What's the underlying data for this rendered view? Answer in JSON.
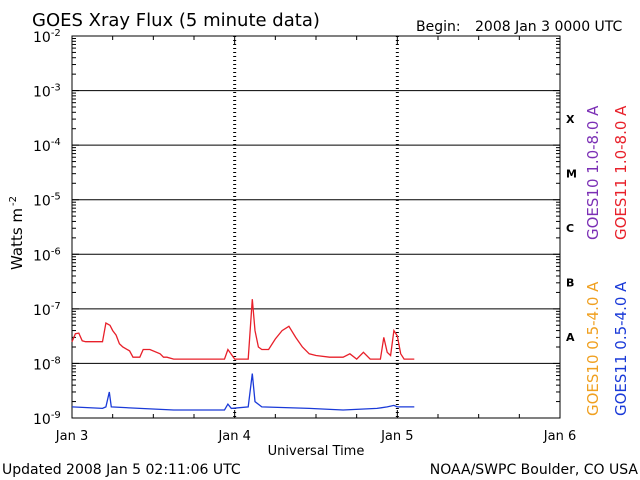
{
  "header": {
    "title": "GOES Xray Flux (5 minute data)",
    "begin_label": "Begin:",
    "begin_value": "2008 Jan 3 0000 UTC"
  },
  "footer": {
    "updated": "Updated 2008 Jan  5 02:11:06 UTC",
    "credit": "NOAA/SWPC Boulder, CO USA"
  },
  "chart_data": {
    "type": "line",
    "title": "GOES Xray Flux (5 minute data)",
    "xlabel": "Universal Time",
    "ylabel": "Watts m",
    "ylabel_exponent": "-2",
    "y_scale": "log",
    "ylim_exponents": [
      -9,
      -2
    ],
    "y_ticks": [
      {
        "mantissa": "10",
        "exp": "-2"
      },
      {
        "mantissa": "10",
        "exp": "-3"
      },
      {
        "mantissa": "10",
        "exp": "-4"
      },
      {
        "mantissa": "10",
        "exp": "-5"
      },
      {
        "mantissa": "10",
        "exp": "-6"
      },
      {
        "mantissa": "10",
        "exp": "-7"
      },
      {
        "mantissa": "10",
        "exp": "-8"
      },
      {
        "mantissa": "10",
        "exp": "-9"
      }
    ],
    "x_ticks": [
      "Jan 3",
      "Jan 4",
      "Jan 5",
      "Jan 6"
    ],
    "xlim_hours": [
      0,
      72
    ],
    "flare_classes": [
      {
        "label": "X",
        "decade": -4
      },
      {
        "label": "M",
        "decade": -5
      },
      {
        "label": "C",
        "decade": -6
      },
      {
        "label": "B",
        "decade": -7
      },
      {
        "label": "A",
        "decade": -8
      }
    ],
    "grid": "horizontal lines at each decade",
    "legend_placement": "right side, vertical",
    "legend": [
      {
        "name": "GOES10 1.0-8.0 A",
        "color": "#7b2fb5"
      },
      {
        "name": "GOES11 1.0-8.0 A",
        "color": "#e8202a"
      },
      {
        "name": "GOES10 0.5-4.0 A",
        "color": "#f0a020"
      },
      {
        "name": "GOES11 0.5-4.0 A",
        "color": "#1a3ad8"
      }
    ],
    "series": [
      {
        "name": "GOES11 1.0-8.0 A",
        "color": "#e8202a",
        "points": [
          [
            0,
            2.5e-08
          ],
          [
            0.5,
            3.5e-08
          ],
          [
            1.0,
            3.6e-08
          ],
          [
            1.5,
            2.6e-08
          ],
          [
            2.0,
            2.5e-08
          ],
          [
            4.5,
            2.5e-08
          ],
          [
            5.0,
            5.5e-08
          ],
          [
            5.6,
            5e-08
          ],
          [
            6.0,
            4e-08
          ],
          [
            6.5,
            3.3e-08
          ],
          [
            7.0,
            2.3e-08
          ],
          [
            7.5,
            2e-08
          ],
          [
            8.5,
            1.7e-08
          ],
          [
            9.0,
            1.3e-08
          ],
          [
            10.0,
            1.3e-08
          ],
          [
            10.5,
            1.8e-08
          ],
          [
            11.5,
            1.8e-08
          ],
          [
            13.0,
            1.5e-08
          ],
          [
            13.5,
            1.3e-08
          ],
          [
            14.0,
            1.3e-08
          ],
          [
            15.0,
            1.2e-08
          ],
          [
            20.0,
            1.2e-08
          ],
          [
            22.5,
            1.2e-08
          ],
          [
            23.0,
            1.8e-08
          ],
          [
            24.0,
            1.2e-08
          ],
          [
            26.0,
            1.2e-08
          ],
          [
            26.6,
            1.5e-07
          ],
          [
            27.0,
            4e-08
          ],
          [
            27.5,
            2e-08
          ],
          [
            28.0,
            1.8e-08
          ],
          [
            29.0,
            1.8e-08
          ],
          [
            30.0,
            2.8e-08
          ],
          [
            31.0,
            4e-08
          ],
          [
            32.0,
            4.8e-08
          ],
          [
            33.0,
            3e-08
          ],
          [
            34.0,
            2e-08
          ],
          [
            35.0,
            1.5e-08
          ],
          [
            36.0,
            1.4e-08
          ],
          [
            38.0,
            1.3e-08
          ],
          [
            40.0,
            1.3e-08
          ],
          [
            41.0,
            1.5e-08
          ],
          [
            42.0,
            1.2e-08
          ],
          [
            43.0,
            1.6e-08
          ],
          [
            44.0,
            1.2e-08
          ],
          [
            45.5,
            1.2e-08
          ],
          [
            46.0,
            3e-08
          ],
          [
            46.5,
            1.6e-08
          ],
          [
            47.0,
            1.4e-08
          ],
          [
            47.5,
            4e-08
          ],
          [
            48.0,
            3.2e-08
          ],
          [
            48.5,
            1.5e-08
          ],
          [
            49.0,
            1.2e-08
          ],
          [
            50.5,
            1.2e-08
          ]
        ]
      },
      {
        "name": "GOES11 0.5-4.0 A",
        "color": "#1a3ad8",
        "points": [
          [
            0,
            1.6e-09
          ],
          [
            4.5,
            1.5e-09
          ],
          [
            5.0,
            1.6e-09
          ],
          [
            5.5,
            3e-09
          ],
          [
            5.8,
            1.6e-09
          ],
          [
            10.0,
            1.5e-09
          ],
          [
            15.0,
            1.4e-09
          ],
          [
            20.0,
            1.4e-09
          ],
          [
            22.5,
            1.4e-09
          ],
          [
            23.0,
            1.8e-09
          ],
          [
            23.5,
            1.5e-09
          ],
          [
            26.0,
            1.6e-09
          ],
          [
            26.6,
            6.5e-09
          ],
          [
            27.0,
            2e-09
          ],
          [
            28.0,
            1.6e-09
          ],
          [
            35.0,
            1.5e-09
          ],
          [
            40.0,
            1.4e-09
          ],
          [
            45.0,
            1.5e-09
          ],
          [
            46.5,
            1.6e-09
          ],
          [
            47.5,
            1.7e-09
          ],
          [
            48.0,
            1.6e-09
          ],
          [
            50.5,
            1.6e-09
          ]
        ]
      }
    ]
  }
}
